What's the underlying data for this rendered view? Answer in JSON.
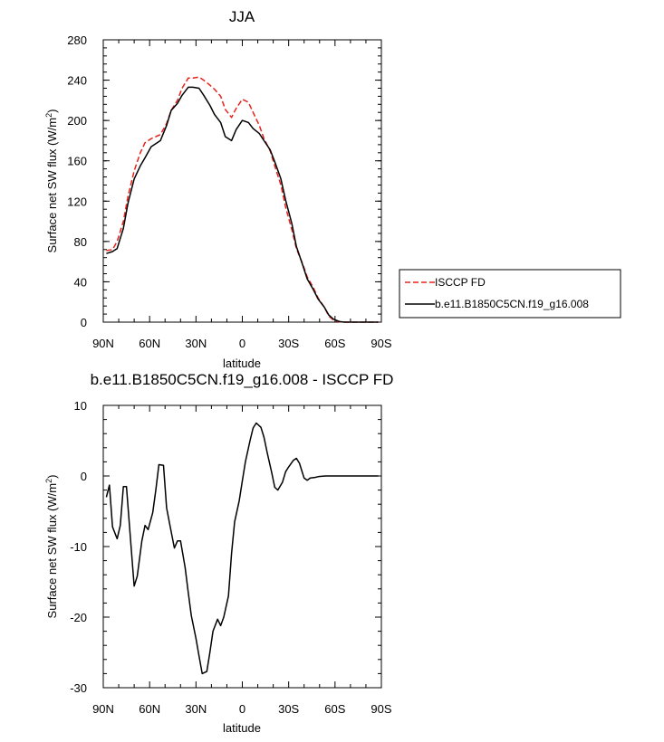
{
  "chart_data": [
    {
      "type": "line",
      "title": "JJA",
      "xlabel": "latitude",
      "ylabel": "Surface net SW flux (W/m",
      "ylabel_sup": "2",
      "ylabel_close": ")",
      "xlim": [
        90,
        -90
      ],
      "ylim": [
        0,
        280
      ],
      "x_ticks": [
        90,
        60,
        30,
        0,
        -30,
        -60,
        -90
      ],
      "x_tick_labels": [
        "90N",
        "60N",
        "30N",
        "0",
        "30S",
        "60S",
        "90S"
      ],
      "y_ticks": [
        0,
        40,
        80,
        120,
        160,
        200,
        240,
        280
      ],
      "y_tick_labels": [
        "0",
        "40",
        "80",
        "120",
        "160",
        "200",
        "240",
        "280"
      ],
      "grid": false,
      "legend_placement": "right",
      "x": [
        88,
        84,
        81,
        77,
        74,
        70,
        66,
        63,
        59,
        56,
        53,
        49,
        46,
        42,
        39,
        35,
        32,
        28,
        25,
        21,
        18,
        14,
        11,
        7,
        4,
        0,
        -4,
        -7,
        -11,
        -14,
        -18,
        -21,
        -25,
        -28,
        -32,
        -35,
        -39,
        -42,
        -46,
        -49,
        -53,
        -56,
        -59,
        -63,
        -66,
        -70,
        -74,
        -77,
        -81,
        -84,
        -88
      ],
      "series": [
        {
          "name": "ISCCP FD",
          "color": "#e8221c",
          "dash": "dashed",
          "values": [
            71,
            72,
            80,
            100,
            125,
            150,
            168,
            178,
            182,
            184,
            186,
            197,
            210,
            220,
            232,
            242,
            242,
            243,
            240,
            235,
            231,
            224,
            211,
            203,
            212,
            221,
            218,
            208,
            195,
            182,
            170,
            155,
            136,
            114,
            92,
            73,
            58,
            45,
            34,
            24,
            15,
            6,
            2,
            0.3,
            0,
            0,
            0,
            0,
            0,
            0,
            0
          ]
        },
        {
          "name": "b.e11.B1850C5CN.f19_g16.008",
          "color": "#000000",
          "dash": "solid",
          "values": [
            68,
            70,
            73,
            93,
            118,
            142,
            155,
            163,
            174,
            177,
            180,
            195,
            210,
            217,
            225,
            233,
            233,
            232,
            225,
            215,
            206,
            198,
            184,
            180,
            191,
            200,
            198,
            192,
            187,
            180,
            171,
            159,
            142,
            121,
            98,
            75,
            57,
            43,
            32,
            23,
            15,
            7,
            3,
            0.5,
            0,
            0,
            0,
            0,
            0,
            0,
            0
          ]
        }
      ]
    },
    {
      "type": "line",
      "title": "b.e11.B1850C5CN.f19_g16.008 - ISCCP FD",
      "xlabel": "latitude",
      "ylabel": "Surface net SW flux (W/m",
      "ylabel_sup": "2",
      "ylabel_close": ")",
      "xlim": [
        90,
        -90
      ],
      "ylim": [
        -30,
        10
      ],
      "x_ticks": [
        90,
        60,
        30,
        0,
        -30,
        -60,
        -90
      ],
      "x_tick_labels": [
        "90N",
        "60N",
        "30N",
        "0",
        "30S",
        "60S",
        "90S"
      ],
      "y_ticks": [
        -30,
        -20,
        -10,
        0,
        10
      ],
      "y_tick_labels": [
        "-30",
        "-20",
        "-10",
        "0",
        "10"
      ],
      "grid": false,
      "x": [
        88,
        86,
        84,
        81,
        79,
        77,
        75,
        72,
        70,
        68,
        65,
        63,
        61,
        58,
        56,
        54,
        51,
        49,
        47,
        44,
        42,
        40,
        37,
        35,
        33,
        30,
        28,
        26,
        23,
        21,
        19,
        16,
        14,
        12,
        9,
        7,
        5,
        2,
        0,
        -2,
        -5,
        -7,
        -9,
        -12,
        -14,
        -16,
        -19,
        -21,
        -23,
        -26,
        -28,
        -30,
        -33,
        -35,
        -37,
        -40,
        -42,
        -44,
        -47,
        -49,
        -51,
        -54,
        -56,
        -58,
        -61,
        -63,
        -65,
        -68,
        -70,
        -72,
        -75,
        -77,
        -79,
        -82,
        -84,
        -86,
        -88
      ],
      "series": [
        {
          "name": "",
          "color": "#000000",
          "dash": "solid",
          "values": [
            -3.0,
            -1.3,
            -7.2,
            -8.9,
            -7.0,
            -1.5,
            -1.5,
            -10.0,
            -15.6,
            -14.2,
            -9.2,
            -7.0,
            -7.6,
            -5.2,
            -2.0,
            1.6,
            1.5,
            -4.5,
            -6.8,
            -10.2,
            -9.2,
            -9.2,
            -13.0,
            -16.5,
            -19.8,
            -23.0,
            -25.5,
            -28.0,
            -27.7,
            -25.0,
            -22.0,
            -20.3,
            -21.2,
            -20.0,
            -17.0,
            -11.0,
            -6.5,
            -3.5,
            -0.7,
            2.0,
            5.0,
            6.8,
            7.5,
            6.9,
            5.5,
            3.4,
            0.5,
            -1.6,
            -2.0,
            -0.9,
            0.6,
            1.3,
            2.2,
            2.5,
            1.8,
            -0.3,
            -0.6,
            -0.3,
            -0.2,
            -0.1,
            -0.05,
            0,
            0,
            0,
            0,
            0,
            0,
            0,
            0,
            0,
            0,
            0,
            0,
            0,
            0,
            0,
            0
          ]
        }
      ]
    }
  ]
}
